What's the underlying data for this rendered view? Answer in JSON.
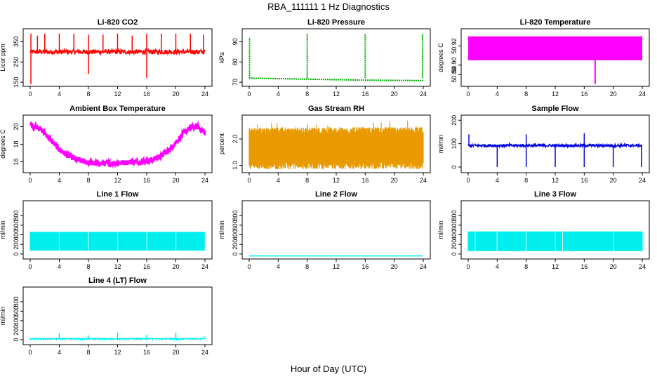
{
  "figure": {
    "title": "RBA_111111  1 Hz Diagnostics",
    "xlabel": "Hour of Day (UTC)"
  },
  "chart_data": [
    {
      "type": "line",
      "title": "Li-820 CO2",
      "ylabel": "Licor ppm",
      "xlim": [
        0,
        24
      ],
      "ylim": [
        140,
        400
      ],
      "x_ticks": [
        "0",
        "4",
        "8",
        "12",
        "16",
        "20",
        "24"
      ],
      "y_ticks": [
        "150",
        "250",
        "350"
      ],
      "series": [
        {
          "color": "#ff0000",
          "baseline": 300,
          "noise": 12,
          "spikes": [
            [
              0.1,
              140
            ],
            [
              0.1,
              390
            ],
            [
              1,
              380
            ],
            [
              2,
              390
            ],
            [
              4,
              390
            ],
            [
              6,
              390
            ],
            [
              8,
              385
            ],
            [
              8,
              190
            ],
            [
              10,
              385
            ],
            [
              12,
              390
            ],
            [
              14,
              380
            ],
            [
              16,
              390
            ],
            [
              16,
              170
            ],
            [
              18,
              390
            ],
            [
              20,
              390
            ],
            [
              22,
              390
            ],
            [
              23.8,
              385
            ]
          ]
        }
      ]
    },
    {
      "type": "line",
      "title": "Li-820 Pressure",
      "ylabel": "kPa",
      "xlim": [
        0,
        24
      ],
      "ylim": [
        69,
        95
      ],
      "x_ticks": [
        "0",
        "4",
        "8",
        "12",
        "16",
        "20",
        "24"
      ],
      "y_ticks": [
        "70",
        "80",
        "90"
      ],
      "series": [
        {
          "color": "#00b000",
          "segments": [
            [
              0,
              72
            ],
            [
              8,
              71.5
            ],
            [
              16,
              71
            ],
            [
              24,
              70.8
            ]
          ],
          "spikes": [
            [
              0.05,
              92
            ],
            [
              8,
              94
            ],
            [
              16,
              94
            ],
            [
              23.9,
              94
            ]
          ]
        }
      ]
    },
    {
      "type": "area",
      "title": "Li-820 Temperature",
      "ylabel": "degrees C",
      "xlim": [
        0,
        24
      ],
      "ylim": [
        50.88,
        50.935
      ],
      "x_ticks": [
        "0",
        "4",
        "8",
        "12",
        "16",
        "20",
        "24"
      ],
      "y_ticks": [
        "50.89",
        "50.90",
        "50.92"
      ],
      "series": [
        {
          "color": "#ff00ff",
          "band": [
            50.905,
            50.93
          ],
          "dips": [
            [
              17.5,
              50.88
            ]
          ]
        }
      ]
    },
    {
      "type": "line",
      "title": "Ambient Box Temperature",
      "ylabel": "degrees C",
      "xlim": [
        0,
        24
      ],
      "ylim": [
        15,
        21
      ],
      "x_ticks": [
        "0",
        "4",
        "8",
        "12",
        "16",
        "20",
        "24"
      ],
      "y_ticks": [
        "16",
        "18",
        "20"
      ],
      "series": [
        {
          "color": "#ff00ff",
          "noise": 0.6,
          "points": [
            [
              0,
              20.2
            ],
            [
              1,
              20.0
            ],
            [
              2,
              19.3
            ],
            [
              3,
              18.3
            ],
            [
              4,
              17.4
            ],
            [
              5,
              16.8
            ],
            [
              6,
              16.4
            ],
            [
              7,
              16.1
            ],
            [
              8,
              15.9
            ],
            [
              9,
              15.8
            ],
            [
              10,
              15.8
            ],
            [
              11,
              15.8
            ],
            [
              12,
              15.9
            ],
            [
              13,
              15.9
            ],
            [
              14,
              16.0
            ],
            [
              15,
              16.0
            ],
            [
              16,
              16.1
            ],
            [
              17,
              16.3
            ],
            [
              18,
              16.7
            ],
            [
              19,
              17.3
            ],
            [
              20,
              18.2
            ],
            [
              21,
              19.2
            ],
            [
              22,
              19.9
            ],
            [
              23,
              20.0
            ],
            [
              24,
              19.3
            ]
          ]
        }
      ]
    },
    {
      "type": "line",
      "title": "Gas Stream RH",
      "ylabel": "percent",
      "xlim": [
        0,
        24
      ],
      "ylim": [
        0.8,
        2.8
      ],
      "x_ticks": [
        "0",
        "4",
        "8",
        "12",
        "16",
        "20",
        "24"
      ],
      "y_ticks": [
        "1.0",
        "2.0"
      ],
      "series": [
        {
          "color": "#e89a00",
          "band": [
            1.0,
            2.3
          ],
          "noise": 0.15,
          "max": 2.7
        }
      ]
    },
    {
      "type": "line",
      "title": "Sample Flow",
      "ylabel": "ml/min",
      "xlim": [
        0,
        24
      ],
      "ylim": [
        -15,
        210
      ],
      "x_ticks": [
        "0",
        "4",
        "8",
        "12",
        "16",
        "20",
        "24"
      ],
      "y_ticks": [
        "0",
        "100",
        "200"
      ],
      "series": [
        {
          "color": "#0000dd",
          "baseline": 92,
          "noise": 6,
          "spikes": [
            [
              0.1,
              140
            ],
            [
              4,
              0
            ],
            [
              8,
              140
            ],
            [
              8,
              0
            ],
            [
              12,
              0
            ],
            [
              16,
              145
            ],
            [
              16,
              0
            ],
            [
              20,
              0
            ],
            [
              23.9,
              0
            ]
          ]
        }
      ]
    },
    {
      "type": "line",
      "title": "Line 1 Flow",
      "ylabel": "ml/min",
      "xlim": [
        0,
        24
      ],
      "ylim": [
        -60,
        1050
      ],
      "x_ticks": [
        "0",
        "4",
        "8",
        "12",
        "16",
        "20",
        "24"
      ],
      "y_ticks": [
        "0",
        "200",
        "400",
        "600",
        "800"
      ],
      "series": [
        {
          "color": "#00eeee",
          "band": [
            70,
            460
          ],
          "gaps": [
            4,
            8,
            12,
            16,
            20,
            24
          ]
        }
      ]
    },
    {
      "type": "line",
      "title": "Line 2 Flow",
      "ylabel": "ml/min",
      "xlim": [
        0,
        24
      ],
      "ylim": [
        -60,
        1050
      ],
      "x_ticks": [
        "0",
        "4",
        "8",
        "12",
        "16",
        "20",
        "24"
      ],
      "y_ticks": [
        "0",
        "200",
        "400",
        "600",
        "800"
      ],
      "series": [
        {
          "color": "#00eeee",
          "baseline": -40,
          "noise": 0
        }
      ]
    },
    {
      "type": "line",
      "title": "Line 3 Flow",
      "ylabel": "ml/min",
      "xlim": [
        0,
        24
      ],
      "ylim": [
        -60,
        1050
      ],
      "x_ticks": [
        "0",
        "4",
        "8",
        "12",
        "16",
        "20",
        "24"
      ],
      "y_ticks": [
        "0",
        "200",
        "400",
        "600",
        "800"
      ],
      "series": [
        {
          "color": "#00eeee",
          "band": [
            60,
            470
          ],
          "gaps": [
            1,
            4,
            8,
            12,
            13,
            20
          ]
        }
      ]
    },
    {
      "type": "line",
      "title": "Line 4 (LT) Flow",
      "ylabel": "ml/min",
      "xlim": [
        0,
        24
      ],
      "ylim": [
        -60,
        1050
      ],
      "x_ticks": [
        "0",
        "4",
        "8",
        "12",
        "16",
        "20",
        "24"
      ],
      "y_ticks": [
        "0",
        "200",
        "400",
        "600",
        "800"
      ],
      "series": [
        {
          "color": "#00eeee",
          "baseline": 20,
          "noise": 8,
          "low_band": -20,
          "spikes": [
            [
              4,
              140
            ],
            [
              8,
              90
            ],
            [
              12,
              150
            ],
            [
              16,
              100
            ],
            [
              20,
              150
            ],
            [
              24,
              70
            ]
          ]
        }
      ]
    }
  ]
}
